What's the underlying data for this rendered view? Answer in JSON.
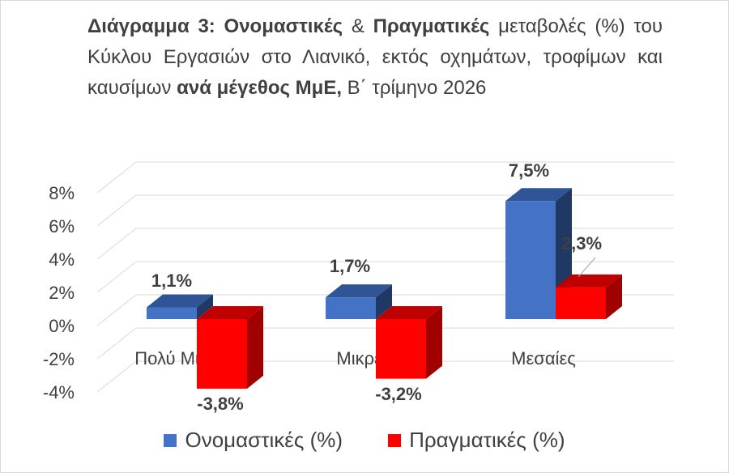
{
  "title_parts": [
    {
      "text": "Διάγραμμα 3: ",
      "bold": true
    },
    {
      "text": "Ονομαστικές",
      "bold": true
    },
    {
      "text": " & ",
      "bold": false
    },
    {
      "text": "Πραγματικές",
      "bold": true
    },
    {
      "text": " μεταβολές (%) του Κύκλου Εργασιών στο Λιανικό, εκτός οχημάτων, τροφίμων και καυσίμων ",
      "bold": false
    },
    {
      "text": "ανά μέγεθος ΜμΕ,",
      "bold": true
    },
    {
      "text": " Β΄ τρίμηνο 2026",
      "bold": false
    }
  ],
  "colors": {
    "nominal_front": "#4472C4",
    "nominal_top": "#2F5597",
    "nominal_side": "#203864",
    "real_front": "#FF0000",
    "real_top": "#C00000",
    "real_side": "#A00000",
    "grid": "#d9d9d9",
    "text": "#404040"
  },
  "chart_data": {
    "type": "bar",
    "categories": [
      "Πολύ Μικρές",
      "Μικρές",
      "Μεσαίες"
    ],
    "series": [
      {
        "name": "Ονομαστικές (%)",
        "values": [
          1.1,
          1.7,
          7.5
        ],
        "labels": [
          "1,1%",
          "1,7%",
          "7,5%"
        ]
      },
      {
        "name": "Πραγματικές (%)",
        "values": [
          -3.8,
          -3.2,
          2.3
        ],
        "labels": [
          "-3,8%",
          "-3,2%",
          "2,3%"
        ]
      }
    ],
    "y_ticks": [
      8,
      6,
      4,
      2,
      0,
      -2,
      -4
    ],
    "y_tick_labels": [
      "8%",
      "6%",
      "4%",
      "2%",
      "0%",
      "-2%",
      "-4%"
    ],
    "ylim": [
      -4,
      8
    ],
    "legend_position": "bottom"
  }
}
